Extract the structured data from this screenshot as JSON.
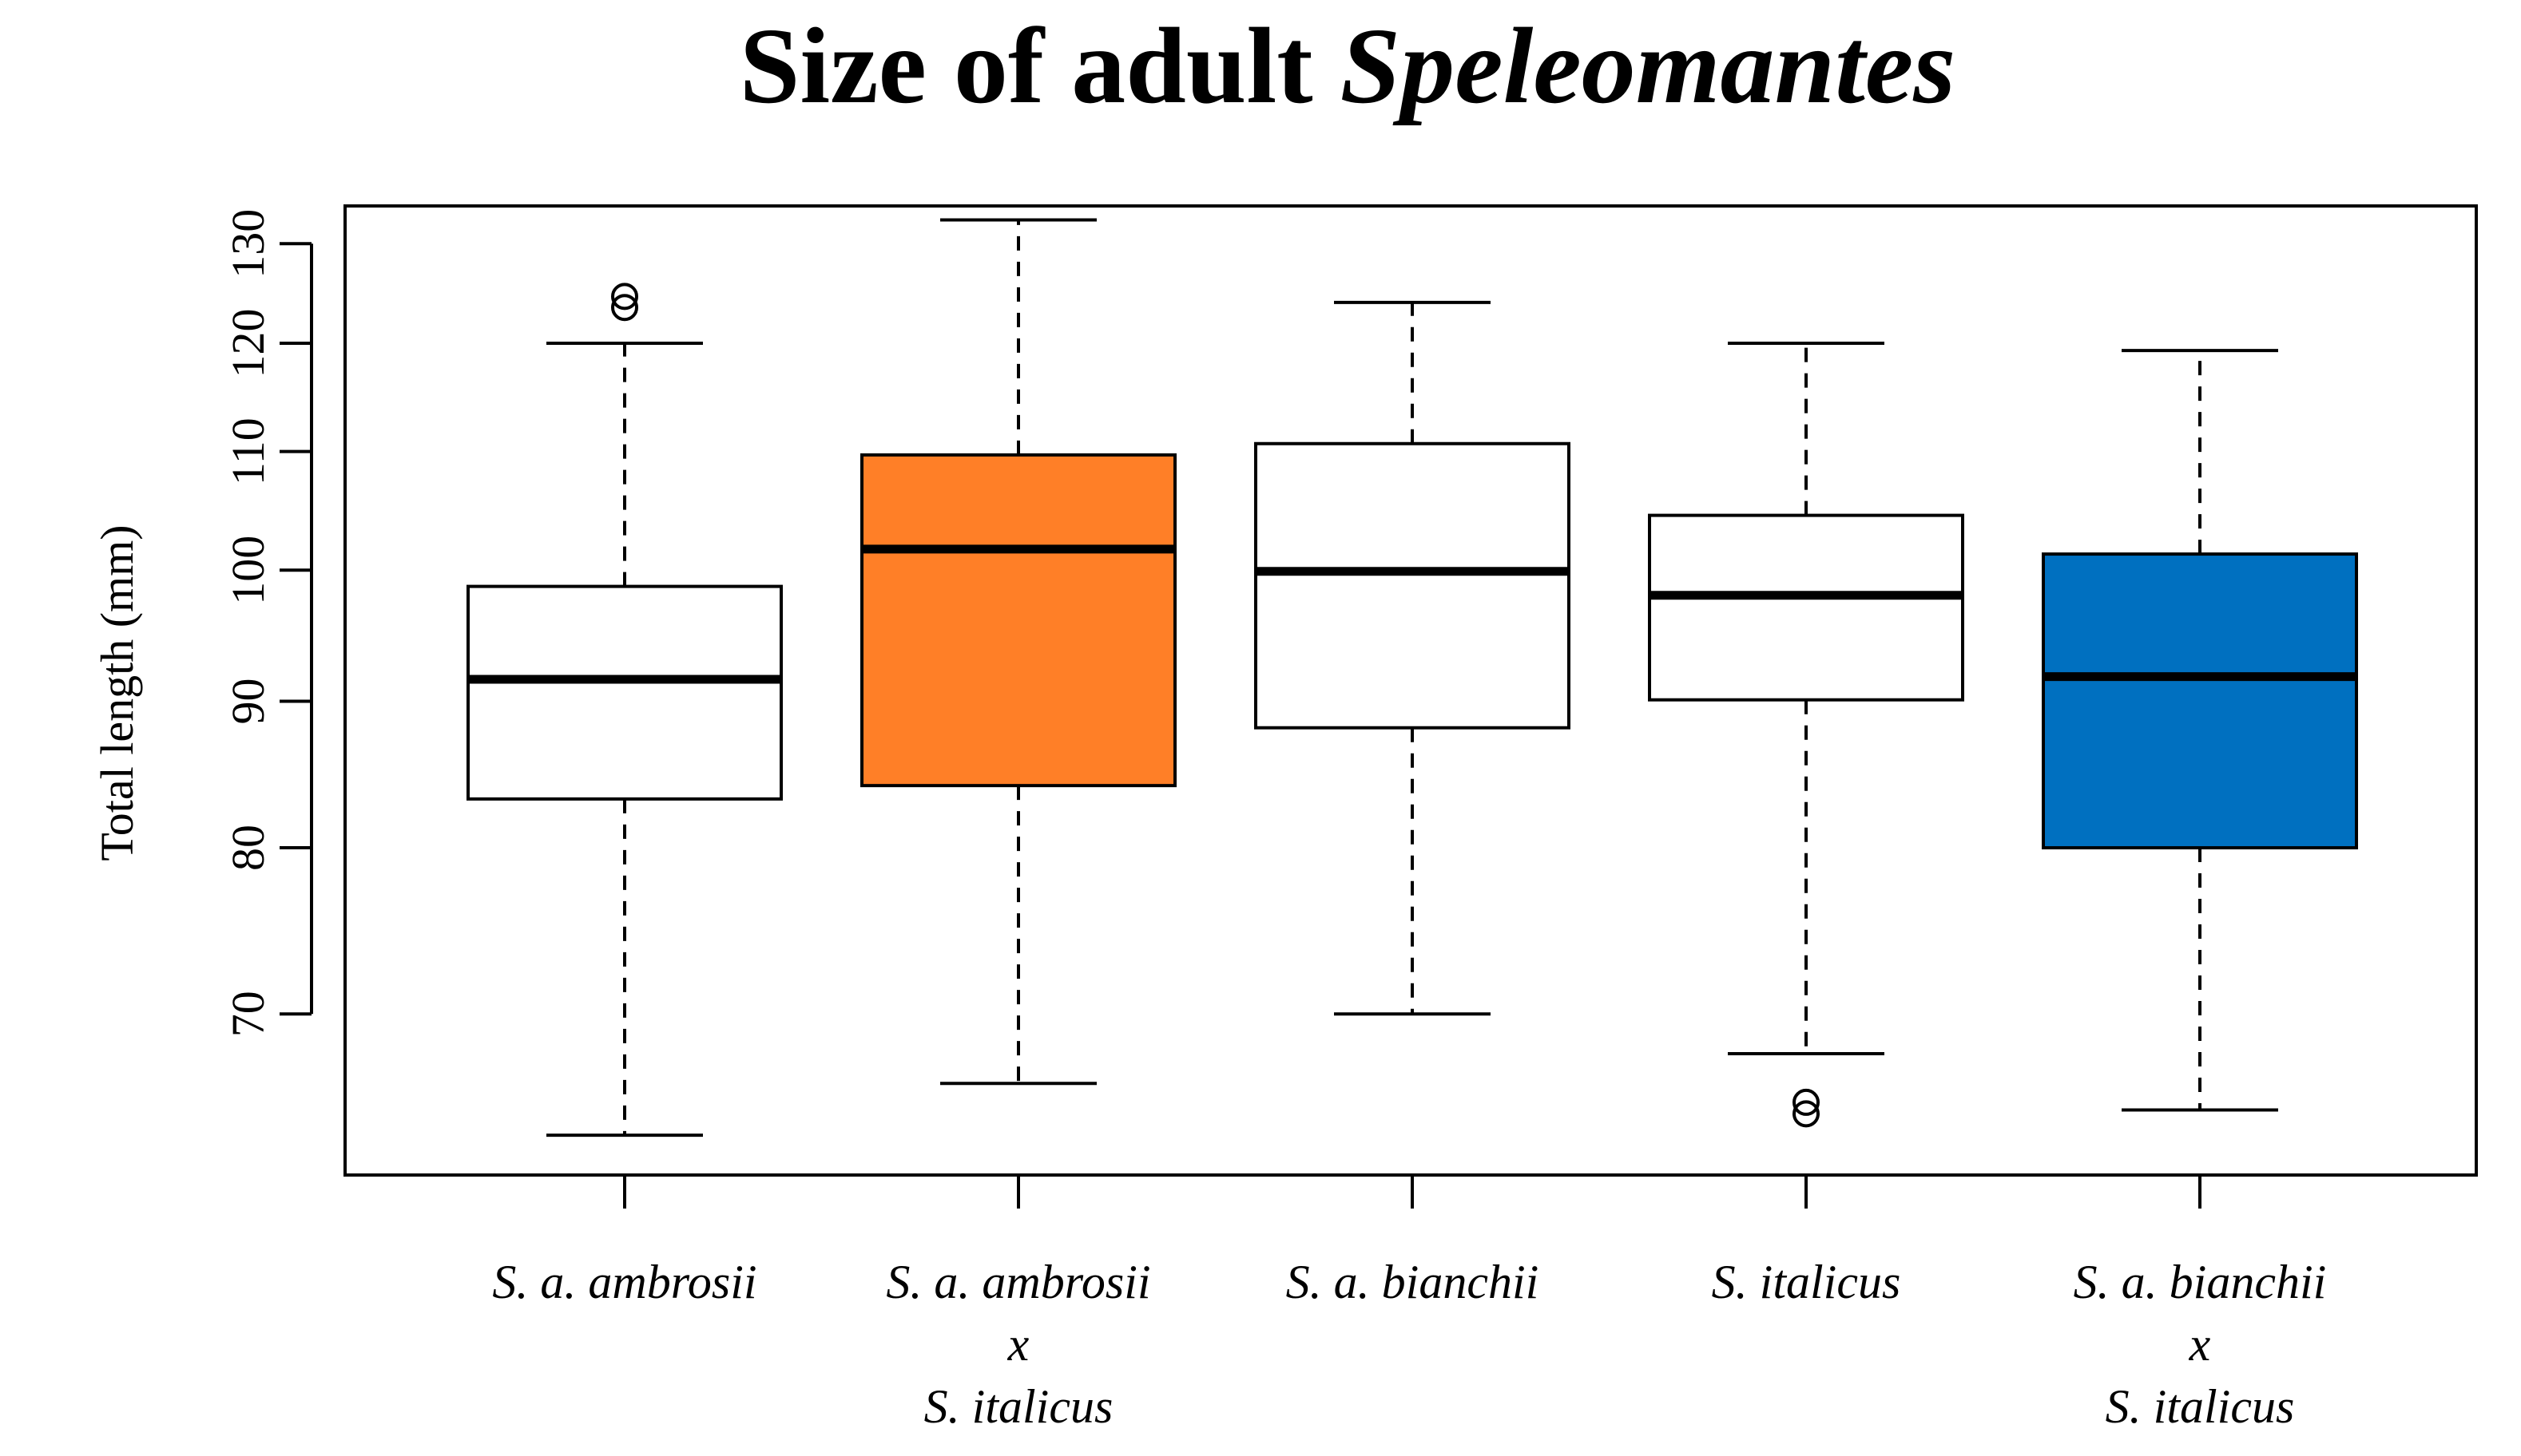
{
  "chart_data": {
    "type": "boxplot",
    "title": {
      "plain": "Size of adult ",
      "italic": "Speleomantes"
    },
    "ylabel": "Total length (mm)",
    "xlabel": "",
    "ylim": [
      61.5,
      134
    ],
    "y_scale": "log",
    "y_ticks": [
      70,
      80,
      90,
      100,
      110,
      120,
      130
    ],
    "categories": [
      {
        "label_lines": [
          "S. a. ambrosii"
        ],
        "fill": "#FFFFFF",
        "whisker_low": 63.5,
        "q1": 83.2,
        "median": 91.6,
        "q3": 98.7,
        "whisker_high": 120,
        "outliers": [
          123.5,
          124.6
        ]
      },
      {
        "label_lines": [
          "S. a. ambrosii",
          "x",
          "S. italicus"
        ],
        "fill": "#FF7F27",
        "whisker_low": 66.2,
        "q1": 84.1,
        "median": 101.7,
        "q3": 109.7,
        "whisker_high": 132.5,
        "outliers": []
      },
      {
        "label_lines": [
          "S. a. bianchii"
        ],
        "fill": "#FFFFFF",
        "whisker_low": 70,
        "q1": 88.1,
        "median": 99.9,
        "q3": 110.7,
        "whisker_high": 124,
        "outliers": []
      },
      {
        "label_lines": [
          "S. italicus"
        ],
        "fill": "#FFFFFF",
        "whisker_low": 67.8,
        "q1": 90.1,
        "median": 98,
        "q3": 104.5,
        "whisker_high": 120,
        "outliers": [
          64.6,
          65.2
        ]
      },
      {
        "label_lines": [
          "S. a. bianchii",
          "x",
          "S. italicus"
        ],
        "fill": "#0070C0",
        "whisker_low": 64.8,
        "q1": 80,
        "median": 91.8,
        "q3": 101.3,
        "whisker_high": 119.3,
        "outliers": []
      }
    ]
  }
}
